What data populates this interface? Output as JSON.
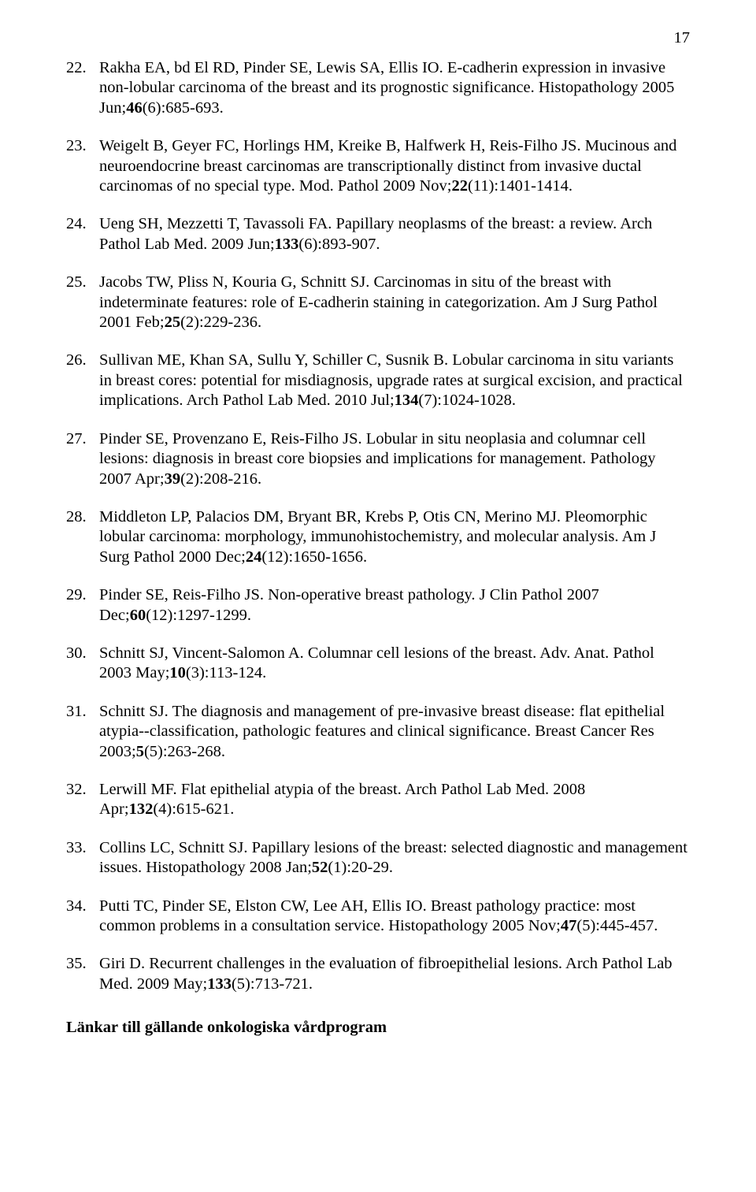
{
  "page_number": "17",
  "font_family": "Times New Roman",
  "text_color": "#000000",
  "background_color": "#ffffff",
  "base_font_size_pt": 15,
  "references": [
    {
      "num": "22.",
      "parts": [
        {
          "t": "Rakha EA, bd El RD, Pinder SE, Lewis SA, Ellis IO. E-cadherin expression in invasive non-lobular carcinoma of the breast and its prognostic significance. Histopathology 2005 Jun;"
        },
        {
          "t": "46",
          "b": true
        },
        {
          "t": "(6):685-693."
        }
      ]
    },
    {
      "num": "23.",
      "parts": [
        {
          "t": "Weigelt B, Geyer FC, Horlings HM, Kreike B, Halfwerk H, Reis-Filho JS. Mucinous and neuroendocrine breast carcinomas are transcriptionally distinct from invasive ductal carcinomas of no special type. Mod. Pathol 2009 Nov;"
        },
        {
          "t": "22",
          "b": true
        },
        {
          "t": "(11):1401-1414."
        }
      ]
    },
    {
      "num": "24.",
      "parts": [
        {
          "t": "Ueng SH, Mezzetti T, Tavassoli FA. Papillary neoplasms of the breast: a review. Arch Pathol Lab Med. 2009 Jun;"
        },
        {
          "t": "133",
          "b": true
        },
        {
          "t": "(6):893-907."
        }
      ]
    },
    {
      "num": "25.",
      "parts": [
        {
          "t": "Jacobs TW, Pliss N, Kouria G, Schnitt SJ. Carcinomas in situ of the breast with indeterminate features: role of E-cadherin staining in categorization. Am J Surg Pathol 2001 Feb;"
        },
        {
          "t": "25",
          "b": true
        },
        {
          "t": "(2):229-236."
        }
      ]
    },
    {
      "num": "26.",
      "parts": [
        {
          "t": "Sullivan ME, Khan SA, Sullu Y, Schiller C, Susnik B. Lobular carcinoma in situ variants in breast cores: potential for misdiagnosis, upgrade rates at surgical excision, and practical implications. Arch Pathol Lab Med. 2010 Jul;"
        },
        {
          "t": "134",
          "b": true
        },
        {
          "t": "(7):1024-1028."
        }
      ]
    },
    {
      "num": "27.",
      "parts": [
        {
          "t": "Pinder SE, Provenzano E, Reis-Filho JS. Lobular in situ neoplasia and columnar cell lesions: diagnosis in breast core biopsies and implications for management. Pathology 2007 Apr;"
        },
        {
          "t": "39",
          "b": true
        },
        {
          "t": "(2):208-216."
        }
      ]
    },
    {
      "num": "28.",
      "parts": [
        {
          "t": "Middleton LP, Palacios DM, Bryant BR, Krebs P, Otis CN, Merino MJ. Pleomorphic lobular carcinoma: morphology, immunohistochemistry, and molecular analysis. Am J Surg Pathol 2000 Dec;"
        },
        {
          "t": "24",
          "b": true
        },
        {
          "t": "(12):1650-1656."
        }
      ]
    },
    {
      "num": "29.",
      "parts": [
        {
          "t": "Pinder SE, Reis-Filho JS. Non-operative breast pathology. J Clin Pathol 2007 Dec;"
        },
        {
          "t": "60",
          "b": true
        },
        {
          "t": "(12):1297-1299."
        }
      ]
    },
    {
      "num": "30.",
      "parts": [
        {
          "t": "Schnitt SJ, Vincent-Salomon A. Columnar cell lesions of the breast. Adv. Anat. Pathol 2003 May;"
        },
        {
          "t": "10",
          "b": true
        },
        {
          "t": "(3):113-124."
        }
      ]
    },
    {
      "num": "31.",
      "parts": [
        {
          "t": "Schnitt SJ. The diagnosis and management of pre-invasive breast disease: flat epithelial atypia--classification, pathologic features and clinical significance. Breast Cancer Res 2003;"
        },
        {
          "t": "5",
          "b": true
        },
        {
          "t": "(5):263-268."
        }
      ]
    },
    {
      "num": "32.",
      "parts": [
        {
          "t": "Lerwill MF. Flat epithelial atypia of the breast. Arch Pathol Lab Med. 2008 Apr;"
        },
        {
          "t": "132",
          "b": true
        },
        {
          "t": "(4):615-621."
        }
      ]
    },
    {
      "num": "33.",
      "parts": [
        {
          "t": "Collins LC, Schnitt SJ. Papillary lesions of the breast: selected diagnostic and management issues. Histopathology 2008 Jan;"
        },
        {
          "t": "52",
          "b": true
        },
        {
          "t": "(1):20-29."
        }
      ]
    },
    {
      "num": "34.",
      "parts": [
        {
          "t": "Putti TC, Pinder SE, Elston CW, Lee AH, Ellis IO. Breast pathology practice: most common problems in a consultation service. Histopathology 2005 Nov;"
        },
        {
          "t": "47",
          "b": true
        },
        {
          "t": "(5):445-457."
        }
      ]
    },
    {
      "num": "35.",
      "parts": [
        {
          "t": "Giri D. Recurrent challenges in the evaluation of fibroepithelial lesions. Arch Pathol Lab Med. 2009 May;"
        },
        {
          "t": "133",
          "b": true
        },
        {
          "t": "(5):713-721."
        }
      ]
    }
  ],
  "footer_heading": "Länkar till gällande onkologiska vårdprogram"
}
